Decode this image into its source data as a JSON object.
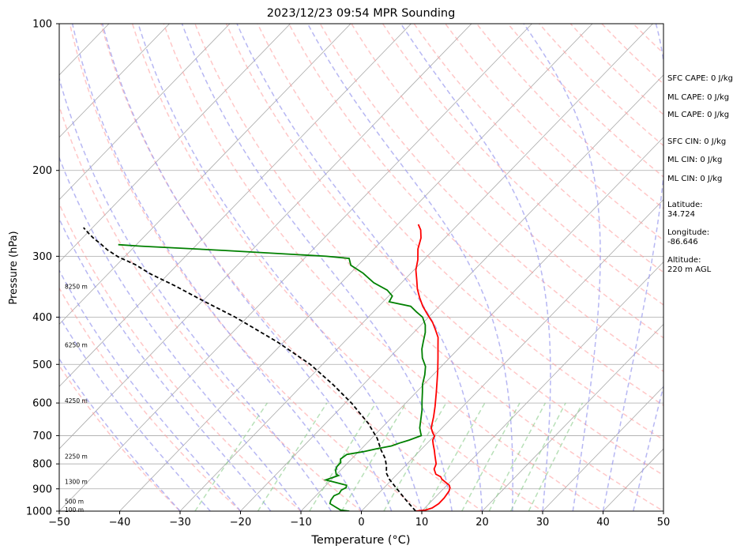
{
  "chart_data": {
    "type": "line",
    "title": "2023/12/23 09:54 MPR Sounding",
    "xlabel": "Temperature (°C)",
    "ylabel": "Pressure (hPa)",
    "xlim": [
      -50,
      50
    ],
    "ylim": [
      1000,
      100
    ],
    "y_scale": "log",
    "skew": "skew-T",
    "x_ticks": [
      -50,
      -40,
      -30,
      -20,
      -10,
      0,
      10,
      20,
      30,
      40,
      50
    ],
    "y_ticks": [
      100,
      200,
      300,
      400,
      500,
      600,
      700,
      800,
      900,
      1000
    ],
    "grid": true,
    "height_labels": [
      {
        "text": "100 m",
        "p": 993
      },
      {
        "text": "500 m",
        "p": 954
      },
      {
        "text": "1300 m",
        "p": 870
      },
      {
        "text": "2250 m",
        "p": 772
      },
      {
        "text": "4250 m",
        "p": 593
      },
      {
        "text": "6250 m",
        "p": 456
      },
      {
        "text": "8250 m",
        "p": 346
      }
    ],
    "series": [
      {
        "role": "temperature",
        "color": "#ff0000",
        "points": [
          [
            9,
            1000
          ],
          [
            10.4,
            995
          ],
          [
            11.2,
            985
          ],
          [
            11.6,
            965
          ],
          [
            11.6,
            940
          ],
          [
            11.3,
            910
          ],
          [
            10.9,
            895
          ],
          [
            10.4,
            885
          ],
          [
            8.2,
            860
          ],
          [
            7.6,
            850
          ],
          [
            6.4,
            840
          ],
          [
            5.3,
            820
          ],
          [
            4.8,
            800
          ],
          [
            3.8,
            780
          ],
          [
            3.2,
            768
          ],
          [
            2.3,
            750
          ],
          [
            1.2,
            730
          ],
          [
            0.4,
            715
          ],
          [
            0.1,
            702
          ],
          [
            -0.8,
            690
          ],
          [
            -1.8,
            675
          ],
          [
            -3.2,
            640
          ],
          [
            -4.6,
            610
          ],
          [
            -6.7,
            570
          ],
          [
            -8.4,
            540
          ],
          [
            -9.9,
            515
          ],
          [
            -11.9,
            485
          ],
          [
            -13.7,
            460
          ],
          [
            -15.2,
            440
          ],
          [
            -16.8,
            425
          ],
          [
            -18.5,
            410
          ],
          [
            -20.6,
            395
          ],
          [
            -22.7,
            380
          ],
          [
            -24.6,
            365
          ],
          [
            -26.4,
            350
          ],
          [
            -28,
            335
          ],
          [
            -29.7,
            320
          ],
          [
            -31,
            305
          ],
          [
            -32.7,
            290
          ],
          [
            -34,
            275
          ],
          [
            -35.3,
            265
          ],
          [
            -36.6,
            258
          ]
        ]
      },
      {
        "role": "dewpoint",
        "color": "#008000",
        "points": [
          [
            -2,
            1000
          ],
          [
            -3.6,
            995
          ],
          [
            -5,
            980
          ],
          [
            -6.4,
            965
          ],
          [
            -6.8,
            950
          ],
          [
            -7,
            930
          ],
          [
            -6.5,
            920
          ],
          [
            -6.7,
            905
          ],
          [
            -6.3,
            895
          ],
          [
            -6.6,
            885
          ],
          [
            -8.9,
            873
          ],
          [
            -10.9,
            863
          ],
          [
            -9.5,
            845
          ],
          [
            -10.1,
            840
          ],
          [
            -10.8,
            825
          ],
          [
            -11.2,
            810
          ],
          [
            -11.2,
            795
          ],
          [
            -11.8,
            782
          ],
          [
            -11.5,
            765
          ],
          [
            -9.2,
            755
          ],
          [
            -7.5,
            745
          ],
          [
            -5.5,
            735
          ],
          [
            -4.6,
            725
          ],
          [
            -3.5,
            715
          ],
          [
            -2.2,
            700
          ],
          [
            -2.8,
            690
          ],
          [
            -3.7,
            675
          ],
          [
            -4.8,
            650
          ],
          [
            -6.2,
            620
          ],
          [
            -7.6,
            595
          ],
          [
            -9,
            570
          ],
          [
            -10.2,
            550
          ],
          [
            -11.4,
            525
          ],
          [
            -12.6,
            505
          ],
          [
            -14.5,
            485
          ],
          [
            -16,
            465
          ],
          [
            -16.9,
            450
          ],
          [
            -18.1,
            430
          ],
          [
            -19.3,
            415
          ],
          [
            -21,
            400
          ],
          [
            -22.9,
            390
          ],
          [
            -24.7,
            380
          ],
          [
            -29,
            372
          ],
          [
            -29.4,
            362
          ],
          [
            -31.2,
            352
          ],
          [
            -34.6,
            340
          ],
          [
            -37.9,
            325
          ],
          [
            -41.2,
            313
          ],
          [
            -42.6,
            303
          ],
          [
            -46.7,
            300
          ],
          [
            -64.3,
            292
          ],
          [
            -79,
            286
          ],
          [
            -83,
            284
          ]
        ]
      },
      {
        "role": "parcel",
        "color": "#000000",
        "points": [
          [
            9,
            1000
          ],
          [
            6,
            955
          ],
          [
            2.3,
            900
          ],
          [
            -0.5,
            860
          ],
          [
            -2,
            835
          ],
          [
            -3,
            810
          ],
          [
            -4.5,
            780
          ],
          [
            -6.5,
            750
          ],
          [
            -9,
            710
          ],
          [
            -13,
            660
          ],
          [
            -19,
            600
          ],
          [
            -25,
            550
          ],
          [
            -32,
            500
          ],
          [
            -41,
            450
          ],
          [
            -52,
            400
          ],
          [
            -60,
            370
          ],
          [
            -67,
            345
          ],
          [
            -73,
            326
          ],
          [
            -77,
            312
          ],
          [
            -81,
            301
          ],
          [
            -84,
            291
          ],
          [
            -86,
            283
          ],
          [
            -88,
            276
          ],
          [
            -89.5,
            270
          ],
          [
            -90.5,
            266
          ],
          [
            -91.5,
            262
          ]
        ]
      }
    ]
  },
  "stats": {
    "sfc_cape": "SFC CAPE: 0 J/kg",
    "ml_cape_1": "ML CAPE: 0 J/kg",
    "ml_cape_2": "ML CAPE: 0 J/kg",
    "sfc_cin": "SFC CIN: 0 J/kg",
    "ml_cin_1": "ML CIN: 0 J/kg",
    "ml_cin_2": "ML CIN: 0 J/kg",
    "latitude_label": "Latitude:",
    "latitude_value": "34.724",
    "longitude_label": "Longitude:",
    "longitude_value": "-86.646",
    "altitude_label": "Altitude:",
    "altitude_value": "220 m AGL"
  },
  "colors": {
    "dry_adiabat": "#ff9999",
    "moist_adiabat": "#9999ee",
    "mixing_ratio": "#88cc88",
    "isotherm": "#aaaaaa",
    "isobar": "#aaaaaa"
  }
}
